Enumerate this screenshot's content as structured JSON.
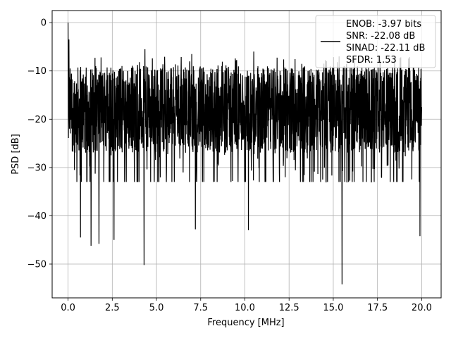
{
  "chart_data": {
    "type": "line",
    "title": "",
    "xlabel": "Frequency [MHz]",
    "ylabel": "PSD [dB]",
    "xlim": [
      -0.9,
      21.1
    ],
    "ylim": [
      -57,
      2.5
    ],
    "grid": true,
    "legend_placement": "top-right",
    "x_ticks": [
      0.0,
      2.5,
      5.0,
      7.5,
      10.0,
      12.5,
      15.0,
      17.5,
      20.0
    ],
    "x_tick_labels": [
      "0.0",
      "2.5",
      "5.0",
      "7.5",
      "10.0",
      "12.5",
      "15.0",
      "17.5",
      "20.0"
    ],
    "y_ticks": [
      0,
      -10,
      -20,
      -30,
      -40,
      -50
    ],
    "y_tick_labels": [
      "0",
      "−10",
      "−20",
      "−30",
      "−40",
      "−50"
    ],
    "series": [
      {
        "name": "ENOB: -3.97 bits\nSNR: -22.08 dB\nSINAD: -22.11 dB\nSFDR: 1.53",
        "color": "#000000",
        "x_range": [
          0,
          20
        ],
        "points": 2048,
        "baseline_db": -18,
        "peaks_db": [
          [
            0.0,
            0.0
          ],
          [
            0.05,
            -3.5
          ],
          [
            4.35,
            -5.5
          ],
          [
            7.0,
            -6.5
          ],
          [
            10.5,
            -6.0
          ],
          [
            15.5,
            -6.0
          ]
        ],
        "troughs_db": [
          [
            0.7,
            -44.5
          ],
          [
            1.3,
            -46.2
          ],
          [
            1.75,
            -45.8
          ],
          [
            2.6,
            -45.0
          ],
          [
            4.3,
            -50.2
          ],
          [
            7.2,
            -42.8
          ],
          [
            10.2,
            -43.0
          ],
          [
            15.5,
            -54.2
          ],
          [
            19.9,
            -44.2
          ]
        ]
      }
    ]
  },
  "legend": {
    "lines": [
      "ENOB: -3.97 bits",
      "SNR: -22.08 dB",
      "SINAD: -22.11 dB",
      "SFDR: 1.53"
    ]
  }
}
